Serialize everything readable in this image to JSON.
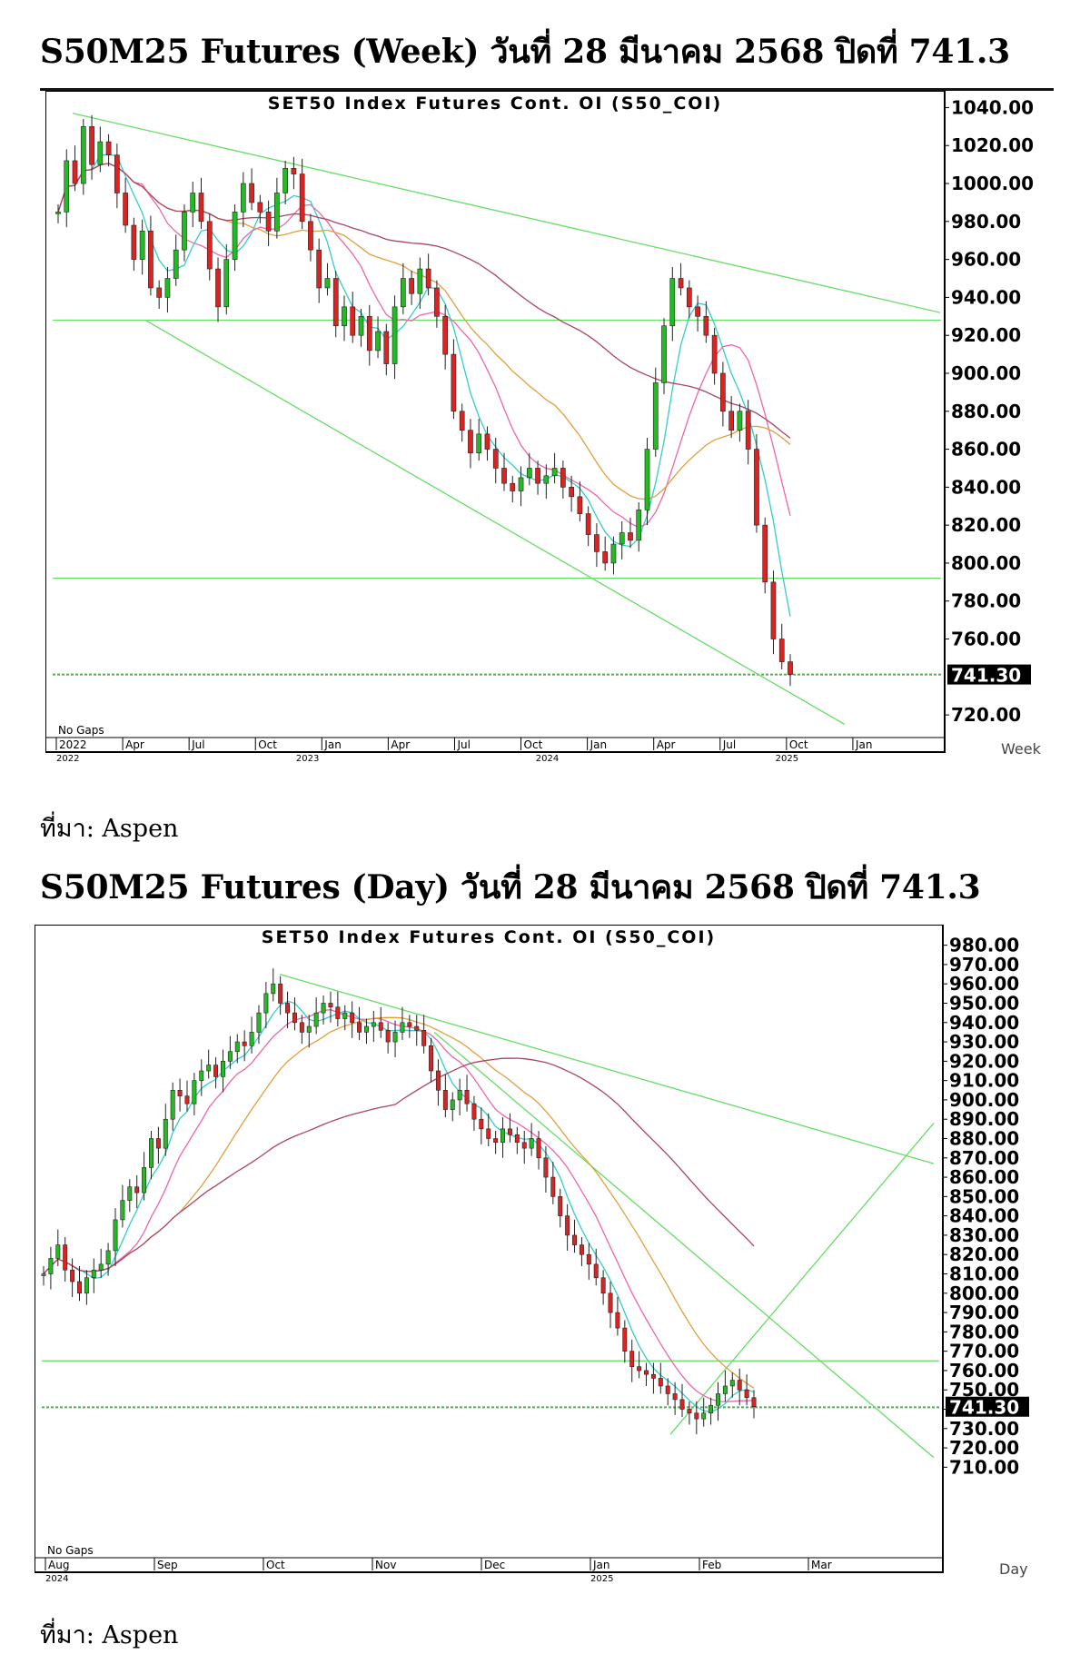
{
  "headings": {
    "weekly": "S50M25 Futures (Week) วันที่ 28 มีนาคม 2568 ปิดที่ 741.3",
    "daily": "S50M25 Futures (Day) วันที่ 28 มีนาคม 2568 ปิดที่ 741.3"
  },
  "source_text": "ที่มา: Aspen",
  "colors": {
    "up_candle": "#22bb22",
    "down_candle": "#dd2222",
    "trendline": "#66dd66",
    "ma_fast": "#33cccc",
    "ma_mid": "#ee66aa",
    "ma_slow": "#e0a040",
    "ma_long": "#aa4466",
    "axis_text": "#000000"
  },
  "chart_data": [
    {
      "type": "candlestick",
      "title": "SET50 Index Futures Cont. OI (S50_COI)",
      "period_label": "Week",
      "gap_note": "No Gaps",
      "ylim": [
        710,
        1045
      ],
      "y_ticks": [
        "1040.00",
        "1020.00",
        "1000.00",
        "980.00",
        "960.00",
        "940.00",
        "920.00",
        "900.00",
        "880.00",
        "860.00",
        "840.00",
        "820.00",
        "800.00",
        "780.00",
        "760.00",
        "720.00"
      ],
      "last_value_label": "741.30",
      "x_labels": [
        "2022",
        "Apr",
        "Jul",
        "Oct",
        "Jan",
        "Apr",
        "Jul",
        "Oct",
        "Jan",
        "Apr",
        "Jul",
        "Oct",
        "Jan"
      ],
      "year_marks": [
        "2022",
        "2023",
        "2024",
        "2025"
      ],
      "horizontal_levels": [
        928,
        792,
        741.3
      ],
      "closes": [
        985,
        1012,
        1000,
        1030,
        1010,
        1022,
        1015,
        995,
        978,
        960,
        975,
        945,
        940,
        950,
        965,
        985,
        995,
        980,
        955,
        935,
        960,
        985,
        1000,
        990,
        985,
        975,
        995,
        1008,
        1005,
        980,
        965,
        945,
        950,
        925,
        935,
        920,
        930,
        912,
        922,
        905,
        935,
        950,
        942,
        955,
        945,
        930,
        910,
        880,
        870,
        858,
        868,
        860,
        850,
        842,
        838,
        845,
        850,
        842,
        846,
        850,
        840,
        835,
        826,
        815,
        806,
        800,
        810,
        816,
        812,
        828,
        860,
        895,
        925,
        950,
        945,
        935,
        930,
        920,
        900,
        880,
        870,
        880,
        860,
        820,
        790,
        760,
        748,
        741.3
      ]
    },
    {
      "type": "candlestick",
      "title": "SET50 Index Futures Cont. OI (S50_COI)",
      "period_label": "Day",
      "gap_note": "No Gaps",
      "ylim": [
        705,
        985
      ],
      "y_ticks": [
        "980.00",
        "970.00",
        "960.00",
        "950.00",
        "940.00",
        "930.00",
        "920.00",
        "910.00",
        "900.00",
        "890.00",
        "880.00",
        "870.00",
        "860.00",
        "850.00",
        "840.00",
        "830.00",
        "820.00",
        "810.00",
        "800.00",
        "790.00",
        "780.00",
        "770.00",
        "760.00",
        "750.00",
        "740.00",
        "730.00",
        "720.00",
        "710.00"
      ],
      "last_value_label": "741.30",
      "x_labels": [
        "Aug",
        "Sep",
        "Oct",
        "Nov",
        "Dec",
        "Jan",
        "Feb",
        "Mar"
      ],
      "year_marks": [
        "2024",
        "2025"
      ],
      "horizontal_levels": [
        765,
        741
      ],
      "closes": [
        810,
        818,
        825,
        812,
        806,
        800,
        808,
        812,
        815,
        822,
        838,
        848,
        855,
        852,
        865,
        880,
        875,
        890,
        905,
        902,
        898,
        910,
        915,
        918,
        912,
        920,
        925,
        930,
        928,
        935,
        945,
        955,
        960,
        950,
        945,
        940,
        935,
        938,
        945,
        950,
        948,
        942,
        945,
        940,
        935,
        938,
        940,
        936,
        930,
        935,
        940,
        938,
        936,
        928,
        915,
        905,
        895,
        900,
        905,
        898,
        890,
        885,
        880,
        878,
        885,
        882,
        878,
        875,
        880,
        870,
        860,
        850,
        840,
        830,
        825,
        820,
        815,
        808,
        800,
        790,
        782,
        770,
        762,
        760,
        758,
        756,
        752,
        748,
        745,
        740,
        738,
        735,
        738,
        742,
        748,
        752,
        755,
        750,
        746,
        741.3
      ]
    }
  ]
}
